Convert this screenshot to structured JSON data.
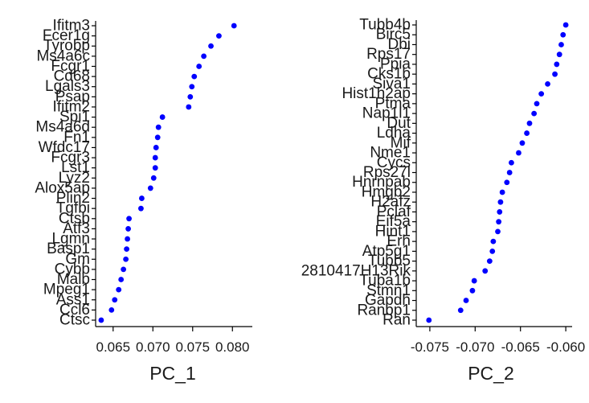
{
  "chart_data": [
    {
      "type": "scatter",
      "xlabel": "PC_1",
      "xlim": [
        0.0628,
        0.0825
      ],
      "xticks": [
        0.065,
        0.07,
        0.075,
        0.08
      ],
      "xtick_labels": [
        "0.065",
        "0.070",
        "0.075",
        "0.080"
      ],
      "genes": [
        "Ctsc",
        "Ccl6",
        "Ass1",
        "Mpeg1",
        "Malb",
        "Cybb",
        "Gm",
        "Basp1",
        "Lgmn",
        "Atf3",
        "Ctsb",
        "Tgfbi",
        "Plin2",
        "Alox5ap",
        "Lyz2",
        "Lst1",
        "Fcgr3",
        "Wfdc17",
        "Fn1",
        "Ms4a6d",
        "Spi1",
        "Ifitm2",
        "Psap",
        "Lgals3",
        "Cd68",
        "Fcgr1",
        "Ms4a6c",
        "Tyrobp",
        "Fcer1g",
        "Ifitm3"
      ],
      "values": [
        0.0635,
        0.0648,
        0.0652,
        0.0657,
        0.066,
        0.0663,
        0.0666,
        0.0667,
        0.0668,
        0.0669,
        0.067,
        0.0685,
        0.0686,
        0.0697,
        0.0701,
        0.0703,
        0.0703,
        0.0704,
        0.0706,
        0.0707,
        0.0712,
        0.0745,
        0.0747,
        0.0749,
        0.0752,
        0.0758,
        0.0764,
        0.0773,
        0.0783,
        0.0802
      ],
      "point_color": "#0000ff"
    },
    {
      "type": "scatter",
      "xlabel": "PC_2",
      "xlim": [
        -0.0765,
        -0.0593
      ],
      "xticks": [
        -0.075,
        -0.07,
        -0.065,
        -0.06
      ],
      "xtick_labels": [
        "-0.075",
        "-0.070",
        "-0.065",
        "-0.060"
      ],
      "genes": [
        "Ran",
        "Ranbp1",
        "Gapdh",
        "Stmn1",
        "Tuba1b",
        "2810417H13Rik",
        "Tubb5",
        "Atp5g1",
        "Erh",
        "Hint1",
        "Eif5a",
        "Pclaf",
        "H2afz",
        "Hmgb2",
        "Hnrnpab",
        "Rps27l",
        "Cycs",
        "Nme1",
        "Mif",
        "Ldha",
        "Dut",
        "Nap1l1",
        "Ptma",
        "Hist1h2ap",
        "Siva1",
        "Cks1b",
        "Ppia",
        "Rps17",
        "Dbi",
        "Birc5",
        "Tubb4b"
      ],
      "values": [
        -0.0751,
        -0.0716,
        -0.071,
        -0.0703,
        -0.0701,
        -0.0689,
        -0.0684,
        -0.0681,
        -0.068,
        -0.0675,
        -0.0674,
        -0.0673,
        -0.0672,
        -0.067,
        -0.0665,
        -0.0662,
        -0.066,
        -0.0652,
        -0.0648,
        -0.0643,
        -0.064,
        -0.0635,
        -0.0632,
        -0.0627,
        -0.062,
        -0.0612,
        -0.061,
        -0.0607,
        -0.0605,
        -0.0603,
        -0.06
      ],
      "point_color": "#0000ff"
    }
  ]
}
